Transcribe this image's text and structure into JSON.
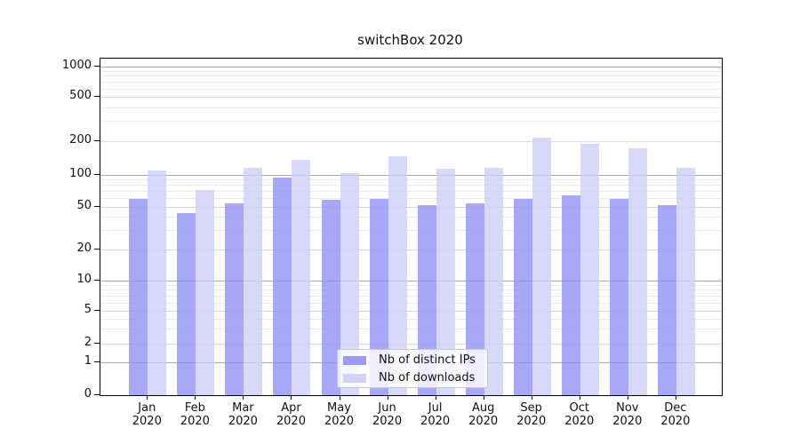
{
  "figure": {
    "title": "switchBox 2020"
  },
  "chart_data": {
    "type": "bar",
    "title": "switchBox 2020",
    "categories": [
      "Jan 2020",
      "Feb 2020",
      "Mar 2020",
      "Apr 2020",
      "May 2020",
      "Jun 2020",
      "Jul 2020",
      "Aug 2020",
      "Sep 2020",
      "Oct 2020",
      "Nov 2020",
      "Dec 2020"
    ],
    "series": [
      {
        "name": "Nb of distinct IPs",
        "color": "rgba(143,143,246,0.78)",
        "values": [
          60,
          44,
          54,
          94,
          58,
          60,
          52,
          54,
          60,
          64,
          60,
          52
        ]
      },
      {
        "name": "Nb of downloads",
        "color": "rgba(205,205,246,0.78)",
        "values": [
          110,
          72,
          115,
          137,
          103,
          148,
          114,
          115,
          215,
          188,
          173,
          115
        ]
      }
    ],
    "xlabel": "",
    "ylabel": "",
    "yscale": "symlog",
    "yticks": [
      0,
      1,
      2,
      5,
      10,
      20,
      50,
      100,
      200,
      500,
      1000
    ],
    "ylim": [
      0,
      1200
    ],
    "grid": true,
    "legend_position": "lower center"
  }
}
